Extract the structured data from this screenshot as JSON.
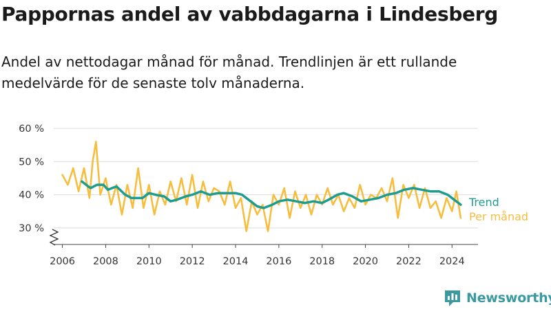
{
  "title": "Pappornas andel av vabbdagarna i Lindesberg",
  "subtitle": "Andel av nettodagar månad för månad. Trendlinjen är ett rullande medelvärde för de senaste tolv månaderna.",
  "brand": {
    "name": "Newsworthy",
    "color": "#3a9aa0"
  },
  "chart_data": {
    "type": "line",
    "ylim": [
      25,
      60
    ],
    "xlim": [
      2005.6,
      2025.2
    ],
    "y_ticks": [
      30,
      40,
      50,
      60
    ],
    "y_tick_labels": [
      "30 %",
      "40 %",
      "50 %",
      "60 %"
    ],
    "x_ticks": [
      2006,
      2008,
      2010,
      2012,
      2014,
      2016,
      2018,
      2020,
      2022,
      2024
    ],
    "x_tick_labels": [
      "2006",
      "2008",
      "2010",
      "2012",
      "2014",
      "2016",
      "2018",
      "2020",
      "2022",
      "2024"
    ],
    "grid": true,
    "axis_break": true,
    "legend": "inline labels at right end of lines",
    "series": [
      {
        "name": "Per månad",
        "color": "#f7bd3e",
        "x": [
          2006.0,
          2006.25,
          2006.5,
          2006.75,
          2007.0,
          2007.25,
          2007.4,
          2007.55,
          2007.75,
          2008.0,
          2008.25,
          2008.5,
          2008.75,
          2009.0,
          2009.25,
          2009.5,
          2009.75,
          2010.0,
          2010.25,
          2010.5,
          2010.75,
          2011.0,
          2011.25,
          2011.5,
          2011.75,
          2012.0,
          2012.25,
          2012.5,
          2012.75,
          2013.0,
          2013.25,
          2013.5,
          2013.75,
          2014.0,
          2014.25,
          2014.5,
          2014.75,
          2015.0,
          2015.25,
          2015.5,
          2015.75,
          2016.0,
          2016.25,
          2016.5,
          2016.75,
          2017.0,
          2017.25,
          2017.5,
          2017.75,
          2018.0,
          2018.25,
          2018.5,
          2018.75,
          2019.0,
          2019.25,
          2019.5,
          2019.75,
          2020.0,
          2020.25,
          2020.5,
          2020.75,
          2021.0,
          2021.25,
          2021.5,
          2021.75,
          2022.0,
          2022.25,
          2022.5,
          2022.75,
          2023.0,
          2023.25,
          2023.5,
          2023.75,
          2024.0,
          2024.2,
          2024.4
        ],
        "values": [
          46,
          43,
          48,
          41,
          48,
          39,
          50,
          56,
          40,
          45,
          37,
          43,
          34,
          43,
          36,
          48,
          36,
          43,
          34,
          41,
          37,
          44,
          38,
          45,
          37,
          46,
          36,
          44,
          38,
          42,
          41,
          37,
          44,
          36,
          39,
          29,
          38,
          34,
          37,
          29,
          40,
          37,
          42,
          33,
          41,
          36,
          40,
          34,
          40,
          37,
          42,
          37,
          40,
          35,
          39,
          36,
          43,
          37,
          40,
          39,
          42,
          38,
          45,
          33,
          43,
          39,
          43,
          36,
          42,
          36,
          38,
          33,
          39,
          35,
          41,
          33
        ]
      },
      {
        "name": "Trend",
        "color": "#1e9c8f",
        "x": [
          2006.9,
          2007.3,
          2007.6,
          2007.9,
          2008.1,
          2008.5,
          2008.9,
          2009.2,
          2009.7,
          2010.0,
          2010.3,
          2010.7,
          2011.0,
          2011.3,
          2011.7,
          2012.0,
          2012.4,
          2012.8,
          2013.2,
          2013.6,
          2014.0,
          2014.3,
          2014.7,
          2015.0,
          2015.3,
          2015.7,
          2016.0,
          2016.4,
          2016.8,
          2017.2,
          2017.6,
          2018.0,
          2018.3,
          2018.7,
          2019.0,
          2019.4,
          2019.8,
          2020.2,
          2020.6,
          2021.0,
          2021.4,
          2021.8,
          2022.2,
          2022.6,
          2023.0,
          2023.4,
          2023.8,
          2024.1,
          2024.4
        ],
        "values": [
          44,
          42,
          43,
          43,
          41.5,
          42.5,
          40,
          39,
          39,
          40.5,
          40,
          39.5,
          38,
          38.5,
          39.5,
          40,
          41,
          40,
          40.5,
          40.5,
          40.5,
          40,
          38,
          36.5,
          36,
          37,
          38,
          38.5,
          38,
          37.5,
          38,
          37.5,
          38.5,
          40,
          40.5,
          39.5,
          38,
          38.5,
          39,
          40,
          40.5,
          41.5,
          42,
          41.5,
          41,
          41,
          40,
          38.5,
          37
        ]
      }
    ]
  }
}
